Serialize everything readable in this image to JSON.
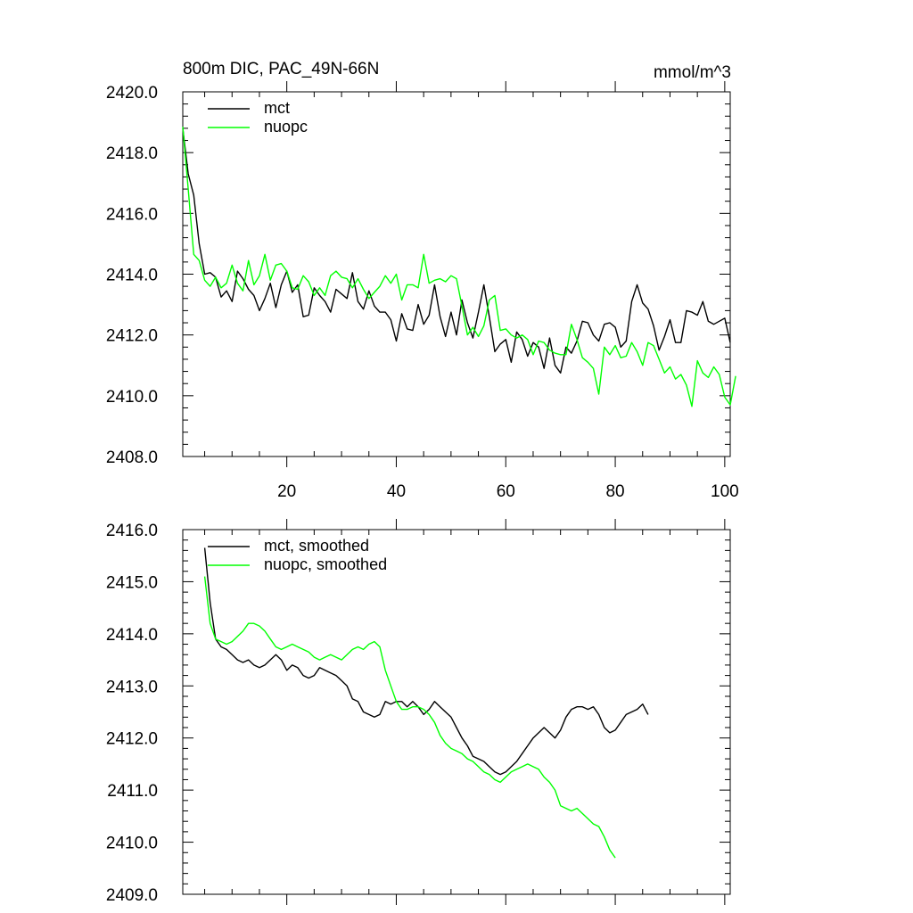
{
  "chart_data": [
    {
      "type": "line",
      "title": "800m DIC, PAC_49N-66N",
      "units": "mmol/m^3",
      "xlim": [
        1,
        101
      ],
      "ylim": [
        2408.0,
        2420.0
      ],
      "x_ticks": [
        20,
        40,
        60,
        80,
        100
      ],
      "x_tick_labels": [
        "20",
        "40",
        "60",
        "80",
        "100"
      ],
      "y_ticks": [
        2408.0,
        2410.0,
        2412.0,
        2414.0,
        2416.0,
        2418.0,
        2420.0
      ],
      "y_tick_labels": [
        "2408.0",
        "2410.0",
        "2412.0",
        "2414.0",
        "2416.0",
        "2418.0",
        "2420.0"
      ],
      "legend_placement": "top-left",
      "series": [
        {
          "name": "mct",
          "color": "#000000",
          "x_start": 1,
          "values": [
            2418.8,
            2417.3,
            2416.6,
            2415.0,
            2414.0,
            2414.05,
            2413.9,
            2413.25,
            2413.45,
            2413.1,
            2414.1,
            2413.85,
            2413.5,
            2413.3,
            2412.8,
            2413.2,
            2413.7,
            2412.9,
            2413.65,
            2414.1,
            2413.4,
            2413.65,
            2412.6,
            2412.65,
            2413.55,
            2413.3,
            2413.1,
            2412.75,
            2413.5,
            2413.35,
            2413.2,
            2414.05,
            2413.1,
            2412.85,
            2413.45,
            2412.95,
            2412.75,
            2412.75,
            2412.5,
            2411.8,
            2412.7,
            2412.2,
            2412.15,
            2413.0,
            2412.35,
            2412.65,
            2413.65,
            2412.6,
            2411.95,
            2412.75,
            2412.0,
            2413.15,
            2412.4,
            2411.9,
            2412.75,
            2413.65,
            2412.6,
            2411.45,
            2411.7,
            2411.85,
            2411.1,
            2412.1,
            2411.85,
            2411.3,
            2411.75,
            2411.6,
            2410.9,
            2411.9,
            2411.0,
            2410.75,
            2411.6,
            2411.4,
            2411.8,
            2412.45,
            2412.4,
            2412.0,
            2411.8,
            2412.35,
            2412.4,
            2412.25,
            2411.6,
            2411.8,
            2413.1,
            2413.65,
            2413.05,
            2412.85,
            2412.3,
            2411.5,
            2411.95,
            2412.5,
            2411.75,
            2411.75,
            2412.8,
            2412.75,
            2412.65,
            2413.1,
            2412.45,
            2412.35,
            2412.45,
            2412.55,
            2411.75
          ]
        },
        {
          "name": "nuopc",
          "color": "#00ff00",
          "x_start": 1,
          "values": [
            2418.85,
            2416.8,
            2414.65,
            2414.45,
            2413.8,
            2413.6,
            2413.9,
            2413.55,
            2413.7,
            2414.3,
            2413.7,
            2413.45,
            2414.45,
            2413.65,
            2413.95,
            2414.65,
            2413.8,
            2414.3,
            2414.35,
            2414.1,
            2413.55,
            2413.5,
            2413.95,
            2413.75,
            2413.3,
            2413.55,
            2413.3,
            2413.95,
            2414.1,
            2413.9,
            2413.85,
            2413.55,
            2413.85,
            2413.5,
            2413.2,
            2413.4,
            2413.6,
            2413.95,
            2413.7,
            2414.0,
            2413.15,
            2413.65,
            2413.65,
            2413.55,
            2414.65,
            2413.7,
            2413.8,
            2413.85,
            2413.75,
            2413.95,
            2413.85,
            2412.95,
            2412.0,
            2412.25,
            2411.95,
            2412.3,
            2413.15,
            2413.3,
            2412.15,
            2412.2,
            2412.0,
            2411.9,
            2412.0,
            2411.85,
            2411.35,
            2411.8,
            2411.75,
            2411.5,
            2411.4,
            2411.35,
            2411.35,
            2412.35,
            2411.85,
            2411.25,
            2411.1,
            2410.9,
            2410.05,
            2411.6,
            2411.35,
            2411.65,
            2411.25,
            2411.3,
            2411.75,
            2411.45,
            2411.0,
            2411.75,
            2411.65,
            2411.2,
            2410.75,
            2410.95,
            2410.55,
            2410.7,
            2410.35,
            2409.65,
            2411.15,
            2410.75,
            2410.6,
            2410.95,
            2410.7,
            2409.95,
            2409.7,
            2410.65
          ]
        }
      ]
    },
    {
      "type": "line",
      "title": "",
      "xlim": [
        1,
        101
      ],
      "ylim": [
        2409.0,
        2416.0
      ],
      "y_ticks": [
        2409.0,
        2410.0,
        2411.0,
        2412.0,
        2413.0,
        2414.0,
        2415.0,
        2416.0
      ],
      "y_tick_labels": [
        "2409.0",
        "2410.0",
        "2411.0",
        "2412.0",
        "2413.0",
        "2414.0",
        "2415.0",
        "2416.0"
      ],
      "legend_placement": "top-left",
      "series": [
        {
          "name": "mct, smoothed",
          "color": "#000000",
          "x_start": 5,
          "values": [
            2415.65,
            2414.6,
            2413.9,
            2413.75,
            2413.7,
            2413.6,
            2413.5,
            2413.45,
            2413.5,
            2413.4,
            2413.35,
            2413.4,
            2413.5,
            2413.6,
            2413.5,
            2413.3,
            2413.4,
            2413.35,
            2413.2,
            2413.15,
            2413.2,
            2413.35,
            2413.3,
            2413.25,
            2413.2,
            2413.1,
            2413.0,
            2412.75,
            2412.7,
            2412.5,
            2412.45,
            2412.4,
            2412.45,
            2412.7,
            2412.65,
            2412.7,
            2412.7,
            2412.6,
            2412.7,
            2412.6,
            2412.45,
            2412.55,
            2412.7,
            2412.6,
            2412.5,
            2412.4,
            2412.2,
            2412.0,
            2411.85,
            2411.65,
            2411.6,
            2411.55,
            2411.45,
            2411.35,
            2411.3,
            2411.35,
            2411.45,
            2411.55,
            2411.7,
            2411.85,
            2412.0,
            2412.1,
            2412.2,
            2412.1,
            2412.0,
            2412.15,
            2412.4,
            2412.55,
            2412.6,
            2412.6,
            2412.55,
            2412.6,
            2412.45,
            2412.2,
            2412.1,
            2412.15,
            2412.3,
            2412.45,
            2412.5,
            2412.55,
            2412.65,
            2412.45
          ]
        },
        {
          "name": "nuopc, smoothed",
          "color": "#00ff00",
          "x_start": 5,
          "values": [
            2415.1,
            2414.2,
            2413.9,
            2413.85,
            2413.8,
            2413.85,
            2413.95,
            2414.05,
            2414.2,
            2414.2,
            2414.15,
            2414.05,
            2413.9,
            2413.75,
            2413.7,
            2413.75,
            2413.8,
            2413.75,
            2413.7,
            2413.65,
            2413.55,
            2413.5,
            2413.55,
            2413.6,
            2413.55,
            2413.5,
            2413.6,
            2413.7,
            2413.75,
            2413.7,
            2413.8,
            2413.85,
            2413.75,
            2413.3,
            2413.0,
            2412.7,
            2412.55,
            2412.55,
            2412.6,
            2412.6,
            2412.55,
            2412.45,
            2412.3,
            2412.05,
            2411.9,
            2411.8,
            2411.75,
            2411.7,
            2411.6,
            2411.55,
            2411.45,
            2411.35,
            2411.3,
            2411.2,
            2411.15,
            2411.25,
            2411.35,
            2411.4,
            2411.45,
            2411.5,
            2411.45,
            2411.4,
            2411.25,
            2411.15,
            2411.0,
            2410.7,
            2410.65,
            2410.6,
            2410.65,
            2410.55,
            2410.45,
            2410.35,
            2410.3,
            2410.1,
            2409.85,
            2409.7
          ]
        }
      ]
    }
  ]
}
